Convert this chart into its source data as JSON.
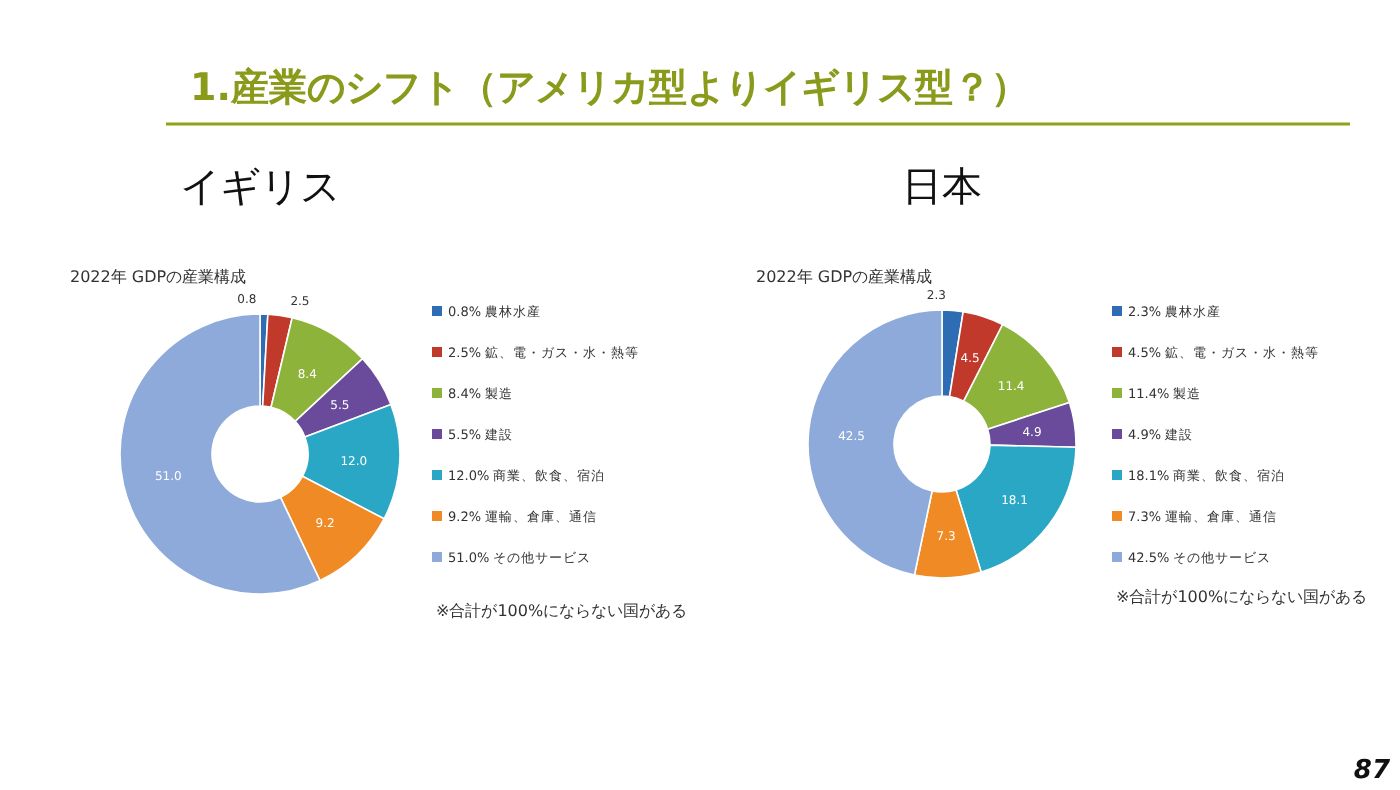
{
  "chart_data": [
    {
      "type": "donut",
      "title": "イギリス",
      "subtitle": "2022年 GDPの産業構成",
      "categories": [
        "0.8% 農林水産",
        "2.5% 鉱、電・ガス・水・熱等",
        "8.4% 製造",
        "5.5% 建設",
        "12.0% 商業、飲食、宿泊",
        "9.2% 運輸、倉庫、通信",
        "51.0% その他サービス"
      ],
      "values": [
        0.8,
        2.5,
        8.4,
        5.5,
        12.0,
        9.2,
        51.0
      ],
      "value_labels": [
        "0.8",
        "2.5",
        "8.4",
        "5.5",
        "12.0",
        "9.2",
        "51.0"
      ],
      "colors": [
        "#2e6db4",
        "#c0392b",
        "#8db33a",
        "#6a4a9a",
        "#2aa7c4",
        "#f08a24",
        "#8eaadb"
      ],
      "legend": "right",
      "annotations": [
        "1.産業のシフト（アメリカ型よりイギリス型？）",
        "※合計が100%にならない国がある",
        "87"
      ]
    },
    {
      "type": "donut",
      "title": "日本",
      "subtitle": "2022年 GDPの産業構成",
      "categories": [
        "2.3% 農林水産",
        "4.5% 鉱、電・ガス・水・熱等",
        "11.4% 製造",
        "4.9% 建設",
        "18.1% 商業、飲食、宿泊",
        "7.3% 運輸、倉庫、通信",
        "42.5% その他サービス"
      ],
      "values": [
        2.3,
        4.5,
        11.4,
        4.9,
        18.1,
        7.3,
        42.5
      ],
      "value_labels": [
        "2.3",
        "4.5",
        "11.4",
        "4.9",
        "18.1",
        "7.3",
        "42.5"
      ],
      "colors": [
        "#2e6db4",
        "#c0392b",
        "#8db33a",
        "#6a4a9a",
        "#2aa7c4",
        "#f08a24",
        "#8eaadb"
      ],
      "legend": "right",
      "annotations": [
        "※合計が100%にならない国がある"
      ]
    }
  ]
}
